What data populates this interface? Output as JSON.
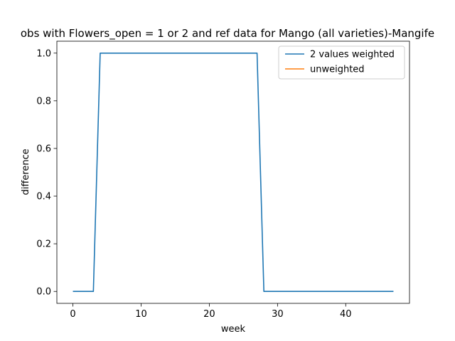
{
  "chart_data": {
    "type": "line",
    "title": "obs with Flowers_open = 1 or 2 and ref data for Mango (all varieties)-Mangife",
    "xlabel": "week",
    "ylabel": "difference",
    "xlim": [
      -2.35,
      49.35
    ],
    "ylim": [
      -0.05,
      1.05
    ],
    "xticks": [
      0,
      10,
      20,
      30,
      40
    ],
    "yticks": [
      0.0,
      0.2,
      0.4,
      0.6,
      0.8,
      1.0
    ],
    "xtick_labels": [
      "0",
      "10",
      "20",
      "30",
      "40"
    ],
    "ytick_labels": [
      "0.0",
      "0.2",
      "0.4",
      "0.6",
      "0.8",
      "1.0"
    ],
    "grid": false,
    "legend_position": "top-right",
    "series": [
      {
        "name": "2 values weighted",
        "color": "#1f77b4",
        "x": [
          0,
          1,
          2,
          3,
          4,
          5,
          6,
          7,
          8,
          9,
          10,
          11,
          12,
          13,
          14,
          15,
          16,
          17,
          18,
          19,
          20,
          21,
          22,
          23,
          24,
          25,
          26,
          27,
          28,
          29,
          30,
          31,
          32,
          33,
          34,
          35,
          36,
          37,
          38,
          39,
          40,
          41,
          42,
          43,
          44,
          45,
          46,
          47
        ],
        "y": [
          0,
          0,
          0,
          0,
          1,
          1,
          1,
          1,
          1,
          1,
          1,
          1,
          1,
          1,
          1,
          1,
          1,
          1,
          1,
          1,
          1,
          1,
          1,
          1,
          1,
          1,
          1,
          1,
          0,
          0,
          0,
          0,
          0,
          0,
          0,
          0,
          0,
          0,
          0,
          0,
          0,
          0,
          0,
          0,
          0,
          0,
          0,
          0
        ]
      },
      {
        "name": "unweighted",
        "color": "#ff7f0e",
        "x": [],
        "y": []
      }
    ]
  }
}
